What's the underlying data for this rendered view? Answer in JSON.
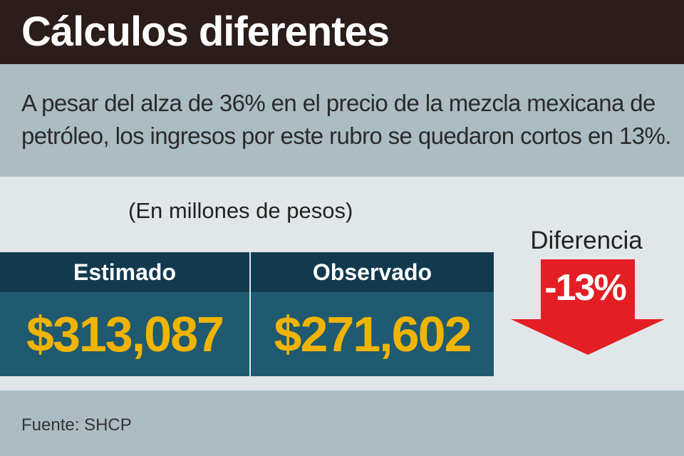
{
  "header": {
    "title": "Cálculos diferentes"
  },
  "subtitle": "A pesar del alza de 36% en el precio de la mezcla mexicana de petróleo, los ingresos por este rubro se quedaron cortos en 13%.",
  "colors": {
    "header_bg": "#2b1d19",
    "band_bg": "#abbcc3",
    "box_head_bg": "#123a4f",
    "box_body_bg": "#1f5a70",
    "value_color": "#f0b400",
    "arrow_red": "#e31e24"
  },
  "chart_data": {
    "type": "table",
    "units_label": "(En millones de pesos)",
    "columns": [
      {
        "label": "Estimado",
        "display": "$313,087",
        "value": 313087
      },
      {
        "label": "Observado",
        "display": "$271,602",
        "value": 271602
      }
    ],
    "difference": {
      "label": "Diferencia",
      "display": "-13%",
      "value": -13
    },
    "source": "Fuente: SHCP"
  }
}
